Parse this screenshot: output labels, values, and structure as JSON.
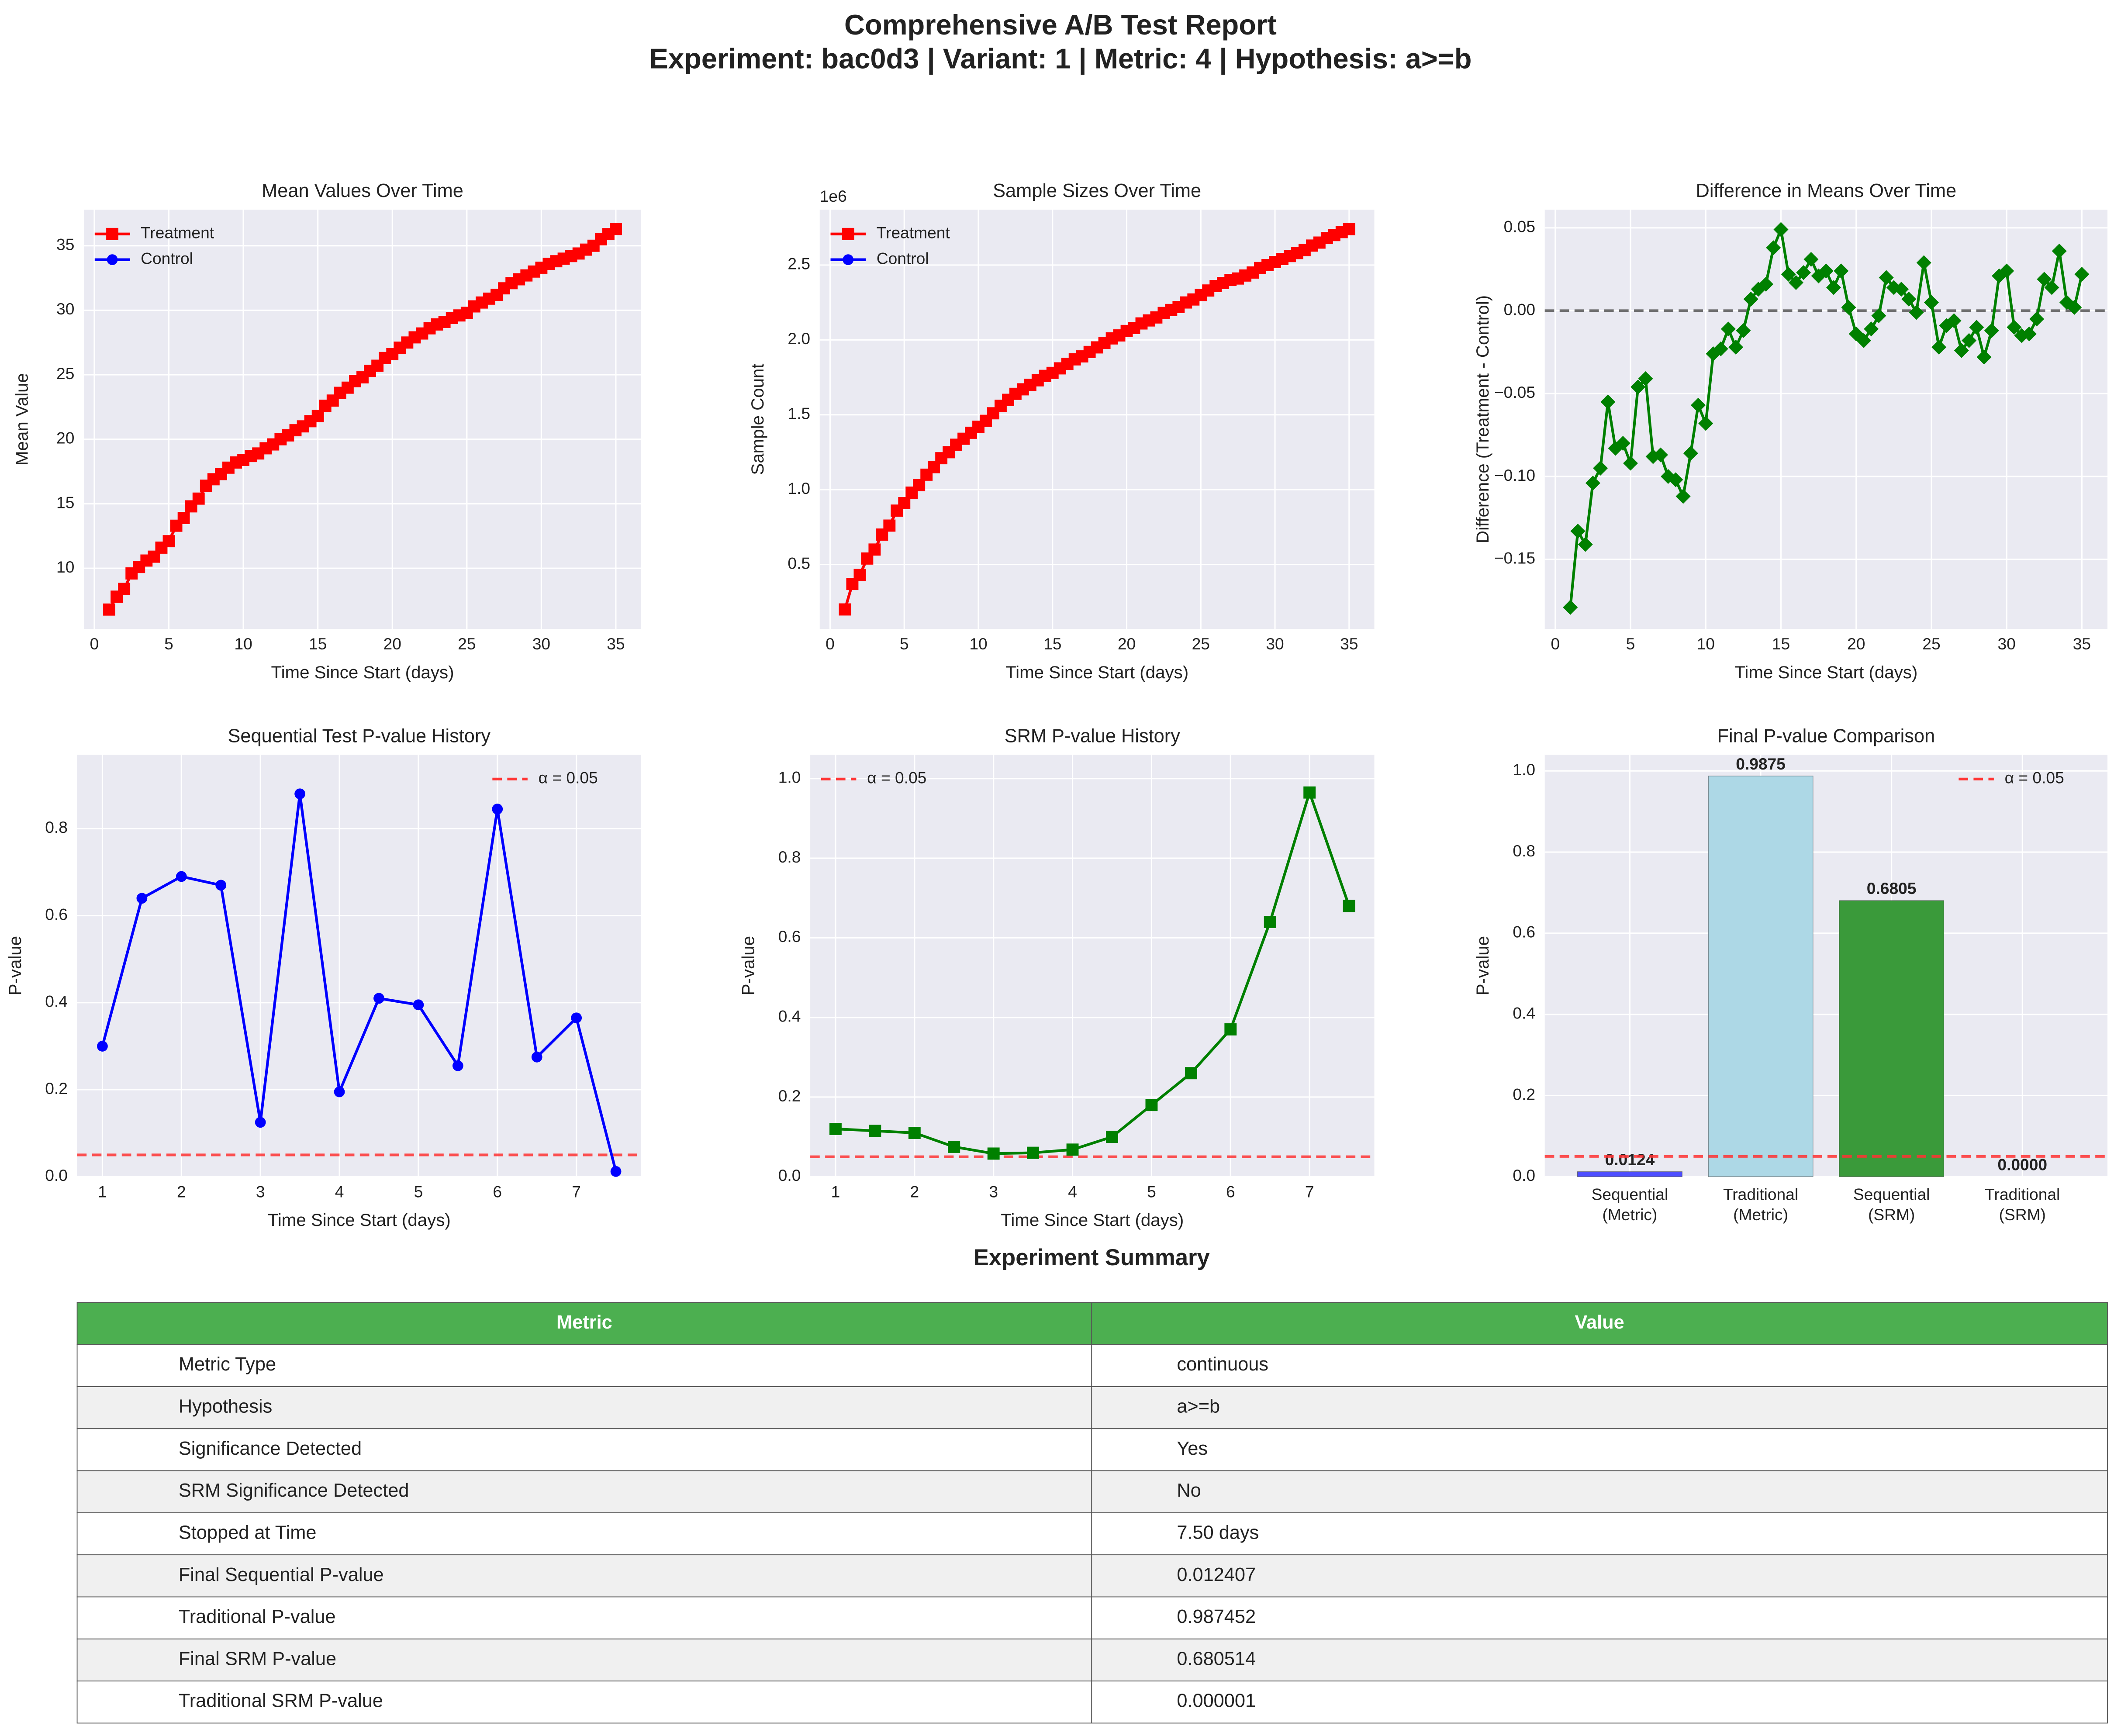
{
  "title": "Comprehensive A/B Test Report",
  "subtitle": "Experiment: bac0d3 | Variant: 1 | Metric: 4 | Hypothesis: a>=b",
  "chart_data": [
    {
      "type": "line",
      "title": "Mean Values Over Time",
      "xlabel": "Time Since Start (days)",
      "ylabel": "Mean Value",
      "legend": "upper left",
      "grid": true,
      "x": [
        1,
        1.5,
        2,
        2.5,
        3,
        3.5,
        4,
        4.5,
        5,
        5.5,
        6,
        6.5,
        7,
        7.5,
        8,
        8.5,
        9,
        9.5,
        10,
        10.5,
        11,
        11.5,
        12,
        12.5,
        13,
        13.5,
        14,
        14.5,
        15,
        15.5,
        16,
        16.5,
        17,
        17.5,
        18,
        18.5,
        19,
        19.5,
        20,
        20.5,
        21,
        21.5,
        22,
        22.5,
        23,
        23.5,
        24,
        24.5,
        25,
        25.5,
        26,
        26.5,
        27,
        27.5,
        28,
        28.5,
        29,
        29.5,
        30,
        30.5,
        31,
        31.5,
        32,
        32.5,
        33,
        33.5,
        34,
        34.5,
        35
      ],
      "series": [
        {
          "name": "Control",
          "color": "#0000ff",
          "marker": "circle",
          "values": [
            6.8,
            7.8,
            8.4,
            9.6,
            10.1,
            10.6,
            10.9,
            11.6,
            12.1,
            13.3,
            13.9,
            14.8,
            15.4,
            16.4,
            16.9,
            17.3,
            17.8,
            18.2,
            18.4,
            18.7,
            18.9,
            19.3,
            19.6,
            20.0,
            20.3,
            20.7,
            21.0,
            21.4,
            21.8,
            22.6,
            23.0,
            23.6,
            24.0,
            24.5,
            24.8,
            25.3,
            25.7,
            26.3,
            26.6,
            27.1,
            27.5,
            27.9,
            28.2,
            28.6,
            28.9,
            29.1,
            29.4,
            29.6,
            29.8,
            30.3,
            30.6,
            30.9,
            31.2,
            31.7,
            32.1,
            32.4,
            32.7,
            33.0,
            33.3,
            33.6,
            33.8,
            34.0,
            34.2,
            34.4,
            34.7,
            35.0,
            35.5,
            35.9,
            36.3
          ]
        },
        {
          "name": "Treatment",
          "color": "#ff0000",
          "marker": "square",
          "values": [
            6.8,
            7.8,
            8.4,
            9.6,
            10.1,
            10.6,
            10.9,
            11.6,
            12.1,
            13.3,
            13.9,
            14.8,
            15.4,
            16.4,
            16.9,
            17.3,
            17.8,
            18.2,
            18.4,
            18.7,
            18.9,
            19.3,
            19.6,
            20.0,
            20.3,
            20.7,
            21.0,
            21.4,
            21.8,
            22.6,
            23.0,
            23.6,
            24.0,
            24.5,
            24.8,
            25.3,
            25.7,
            26.3,
            26.6,
            27.1,
            27.5,
            27.9,
            28.2,
            28.6,
            28.9,
            29.1,
            29.4,
            29.6,
            29.8,
            30.3,
            30.6,
            30.9,
            31.2,
            31.7,
            32.1,
            32.4,
            32.7,
            33.0,
            33.3,
            33.6,
            33.8,
            34.0,
            34.2,
            34.4,
            34.7,
            35.0,
            35.5,
            35.9,
            36.3
          ]
        }
      ],
      "xlim": [
        -0.7,
        36.7
      ],
      "xticks": [
        0,
        5,
        10,
        15,
        20,
        25,
        30,
        35
      ],
      "ylim": [
        5.3,
        37.8
      ],
      "yticks": [
        10,
        15,
        20,
        25,
        30,
        35
      ]
    },
    {
      "type": "line",
      "title": "Sample Sizes Over Time",
      "xlabel": "Time Since Start (days)",
      "ylabel": "Sample Count",
      "y_offset_label": "1e6",
      "legend": "upper left",
      "grid": true,
      "x": [
        1,
        1.5,
        2,
        2.5,
        3,
        3.5,
        4,
        4.5,
        5,
        5.5,
        6,
        6.5,
        7,
        7.5,
        8,
        8.5,
        9,
        9.5,
        10,
        10.5,
        11,
        11.5,
        12,
        12.5,
        13,
        13.5,
        14,
        14.5,
        15,
        15.5,
        16,
        16.5,
        17,
        17.5,
        18,
        18.5,
        19,
        19.5,
        20,
        20.5,
        21,
        21.5,
        22,
        22.5,
        23,
        23.5,
        24,
        24.5,
        25,
        25.5,
        26,
        26.5,
        27,
        27.5,
        28,
        28.5,
        29,
        29.5,
        30,
        30.5,
        31,
        31.5,
        32,
        32.5,
        33,
        33.5,
        34,
        34.5,
        35
      ],
      "series": [
        {
          "name": "Control",
          "color": "#0000ff",
          "marker": "circle",
          "values": [
            0.2,
            0.37,
            0.43,
            0.54,
            0.6,
            0.7,
            0.76,
            0.86,
            0.91,
            0.98,
            1.03,
            1.1,
            1.15,
            1.21,
            1.25,
            1.3,
            1.34,
            1.38,
            1.42,
            1.46,
            1.51,
            1.56,
            1.6,
            1.64,
            1.67,
            1.7,
            1.73,
            1.76,
            1.78,
            1.81,
            1.84,
            1.87,
            1.89,
            1.92,
            1.95,
            1.98,
            2.01,
            2.03,
            2.06,
            2.08,
            2.11,
            2.13,
            2.15,
            2.18,
            2.2,
            2.22,
            2.25,
            2.27,
            2.3,
            2.33,
            2.36,
            2.38,
            2.4,
            2.41,
            2.43,
            2.45,
            2.48,
            2.5,
            2.52,
            2.54,
            2.56,
            2.58,
            2.6,
            2.63,
            2.65,
            2.68,
            2.7,
            2.72,
            2.74
          ]
        },
        {
          "name": "Treatment",
          "color": "#ff0000",
          "marker": "square",
          "values": [
            0.2,
            0.37,
            0.43,
            0.54,
            0.6,
            0.7,
            0.76,
            0.86,
            0.91,
            0.98,
            1.03,
            1.1,
            1.15,
            1.21,
            1.25,
            1.3,
            1.34,
            1.38,
            1.42,
            1.46,
            1.51,
            1.56,
            1.6,
            1.64,
            1.67,
            1.7,
            1.73,
            1.76,
            1.78,
            1.81,
            1.84,
            1.87,
            1.89,
            1.92,
            1.95,
            1.98,
            2.01,
            2.03,
            2.06,
            2.08,
            2.11,
            2.13,
            2.15,
            2.18,
            2.2,
            2.22,
            2.25,
            2.27,
            2.3,
            2.33,
            2.36,
            2.38,
            2.4,
            2.41,
            2.43,
            2.45,
            2.48,
            2.5,
            2.52,
            2.54,
            2.56,
            2.58,
            2.6,
            2.63,
            2.65,
            2.68,
            2.7,
            2.72,
            2.74
          ]
        }
      ],
      "xlim": [
        -0.7,
        36.7
      ],
      "xticks": [
        0,
        5,
        10,
        15,
        20,
        25,
        30,
        35
      ],
      "ylim": [
        0.07,
        2.87
      ],
      "yticks": [
        {
          "value": 0.5,
          "label": "0.5"
        },
        {
          "value": 1,
          "label": "1.0"
        },
        {
          "value": 1.5,
          "label": "1.5"
        },
        {
          "value": 2,
          "label": "2.0"
        },
        {
          "value": 2.5,
          "label": "2.5"
        }
      ]
    },
    {
      "type": "line",
      "title": "Difference in Means Over Time",
      "xlabel": "Time Since Start (days)",
      "ylabel": "Difference (Treatment - Control)",
      "grid": true,
      "x": [
        1,
        1.5,
        2,
        2.5,
        3,
        3.5,
        4,
        4.5,
        5,
        5.5,
        6,
        6.5,
        7,
        7.5,
        8,
        8.5,
        9,
        9.5,
        10,
        10.5,
        11,
        11.5,
        12,
        12.5,
        13,
        13.5,
        14,
        14.5,
        15,
        15.5,
        16,
        16.5,
        17,
        17.5,
        18,
        18.5,
        19,
        19.5,
        20,
        20.5,
        21,
        21.5,
        22,
        22.5,
        23,
        23.5,
        24,
        24.5,
        25,
        25.5,
        26,
        26.5,
        27,
        27.5,
        28,
        28.5,
        29,
        29.5,
        30,
        30.5,
        31,
        31.5,
        32,
        32.5,
        33,
        33.5,
        34,
        34.5,
        35
      ],
      "series": [
        {
          "color": "#008000",
          "marker": "diamond",
          "values": [
            -0.179,
            -0.133,
            -0.141,
            -0.104,
            -0.095,
            -0.055,
            -0.083,
            -0.08,
            -0.092,
            -0.046,
            -0.041,
            -0.088,
            -0.087,
            -0.1,
            -0.102,
            -0.112,
            -0.086,
            -0.057,
            -0.068,
            -0.026,
            -0.023,
            -0.011,
            -0.022,
            -0.012,
            0.007,
            0.013,
            0.016,
            0.038,
            0.049,
            0.022,
            0.017,
            0.023,
            0.031,
            0.021,
            0.024,
            0.014,
            0.024,
            0.002,
            -0.014,
            -0.018,
            -0.011,
            -0.003,
            0.02,
            0.014,
            0.013,
            0.007,
            -0.001,
            0.029,
            0.005,
            -0.022,
            -0.009,
            -0.006,
            -0.024,
            -0.018,
            -0.01,
            -0.028,
            -0.012,
            0.021,
            0.024,
            -0.01,
            -0.015,
            -0.014,
            -0.005,
            0.019,
            0.014,
            0.036,
            0.005,
            0.002,
            0.022
          ]
        }
      ],
      "hlines": [
        {
          "value": 0,
          "color": "#555555"
        }
      ],
      "xlim": [
        -0.7,
        36.7
      ],
      "xticks": [
        0,
        5,
        10,
        15,
        20,
        25,
        30,
        35
      ],
      "ylim": [
        -0.192,
        0.061
      ],
      "yticks": [
        {
          "value": -0.15,
          "label": "−0.15"
        },
        {
          "value": -0.1,
          "label": "−0.10"
        },
        {
          "value": -0.05,
          "label": "−0.05"
        },
        {
          "value": 0,
          "label": "0.00"
        },
        {
          "value": 0.05,
          "label": "0.05"
        }
      ]
    },
    {
      "type": "line",
      "title": "Sequential Test P-value History",
      "xlabel": "Time Since Start (days)",
      "ylabel": "P-value",
      "legend": "upper right",
      "grid": true,
      "x": [
        1,
        1.5,
        2,
        2.5,
        3,
        3.5,
        4,
        4.5,
        5,
        5.5,
        6,
        6.5,
        7,
        7.5
      ],
      "series": [
        {
          "color": "#0000ff",
          "marker": "circle",
          "values": [
            0.3,
            0.64,
            0.69,
            0.67,
            0.125,
            0.88,
            0.195,
            0.41,
            0.395,
            0.255,
            0.845,
            0.275,
            0.365,
            0.012
          ]
        }
      ],
      "hlines": [
        {
          "value": 0.05,
          "label": "α = 0.05",
          "color": "#ff3333"
        }
      ],
      "xlim": [
        0.68,
        7.82
      ],
      "xticks": [
        1,
        2,
        3,
        4,
        5,
        6,
        7
      ],
      "ylim": [
        0,
        0.97
      ],
      "yticks": [
        {
          "value": 0,
          "label": "0.0"
        },
        0.2,
        0.4,
        0.6,
        0.8
      ]
    },
    {
      "type": "line",
      "title": "SRM P-value History",
      "xlabel": "Time Since Start (days)",
      "ylabel": "P-value",
      "legend": "upper left",
      "grid": true,
      "x": [
        1,
        1.5,
        2,
        2.5,
        3,
        3.5,
        4,
        4.5,
        5,
        5.5,
        6,
        6.5,
        7,
        7.5
      ],
      "series": [
        {
          "color": "#008000",
          "marker": "square",
          "values": [
            0.12,
            0.115,
            0.11,
            0.075,
            0.058,
            0.06,
            0.068,
            0.1,
            0.18,
            0.26,
            0.37,
            0.64,
            0.965,
            0.68
          ]
        }
      ],
      "hlines": [
        {
          "value": 0.05,
          "label": "α = 0.05",
          "color": "#ff3333"
        }
      ],
      "xlim": [
        0.68,
        7.82
      ],
      "xticks": [
        1,
        2,
        3,
        4,
        5,
        6,
        7
      ],
      "ylim": [
        0,
        1.06
      ],
      "yticks": [
        {
          "value": 0,
          "label": "0.0"
        },
        0.2,
        0.4,
        0.6,
        0.8,
        {
          "value": 1,
          "label": "1.0"
        }
      ]
    },
    {
      "type": "bar",
      "title": "Final P-value Comparison",
      "ylabel": "P-value",
      "legend": "upper right",
      "grid": true,
      "categories": [
        "Sequential\n(Metric)",
        "Traditional\n(Metric)",
        "Sequential\n(SRM)",
        "Traditional\n(SRM)"
      ],
      "values": [
        0.0124,
        0.9875,
        0.6805,
        0.0
      ],
      "value_labels": [
        "0.0124",
        "0.9875",
        "0.6805",
        "0.0000"
      ],
      "colors": [
        "#4d4dff",
        "#add8e6",
        "#3a9a3a",
        "#ff4d4d"
      ],
      "hlines": [
        {
          "value": 0.05,
          "label": "α = 0.05",
          "color": "#ff3333"
        }
      ],
      "ylim": [
        0,
        1.04
      ],
      "yticks": [
        {
          "value": 0,
          "label": "0.0"
        },
        0.2,
        0.4,
        0.6,
        0.8,
        {
          "value": 1,
          "label": "1.0"
        }
      ]
    }
  ],
  "table": {
    "title": "Experiment Summary",
    "columns": [
      "Metric",
      "Value"
    ],
    "rows": [
      [
        "Metric Type",
        "continuous"
      ],
      [
        "Hypothesis",
        "a>=b"
      ],
      [
        "Significance Detected",
        "Yes"
      ],
      [
        "SRM Significance Detected",
        "No"
      ],
      [
        "Stopped at Time",
        "7.50 days"
      ],
      [
        "Final Sequential P-value",
        "0.012407"
      ],
      [
        "Traditional P-value",
        "0.987452"
      ],
      [
        "Final SRM P-value",
        "0.680514"
      ],
      [
        "Traditional SRM P-value",
        "0.000001"
      ]
    ]
  }
}
